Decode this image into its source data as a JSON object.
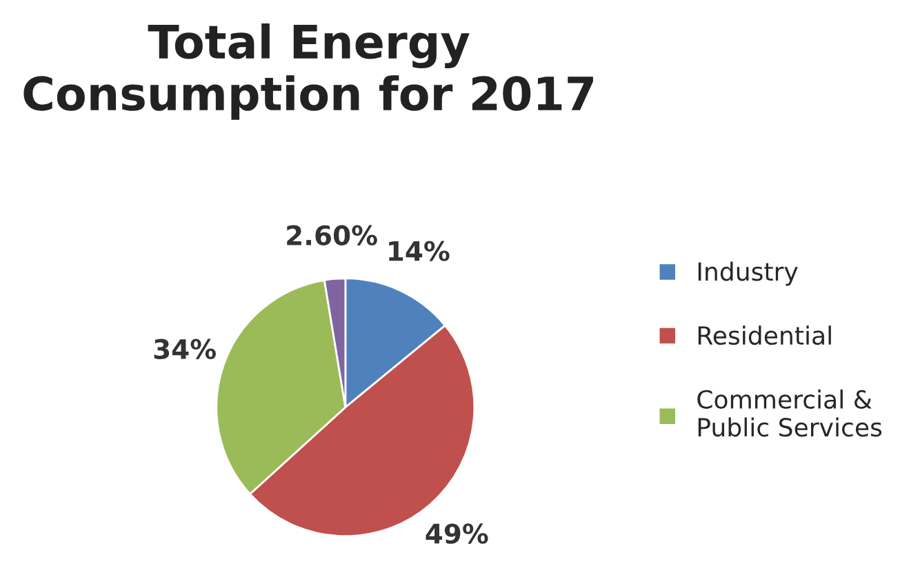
{
  "chart_data": {
    "type": "pie",
    "title": "Total Energy Consumption for 2017",
    "categories": [
      "Industry",
      "Residential",
      "Commercial &\nPublic Services",
      null
    ],
    "values": [
      14,
      49,
      34,
      2.6
    ],
    "value_labels": [
      "14%",
      "49%",
      "34%",
      "2.60%"
    ],
    "colors": [
      "#4f81bd",
      "#c0504d",
      "#9bbb59",
      "#8064a2"
    ],
    "legend": "right"
  }
}
